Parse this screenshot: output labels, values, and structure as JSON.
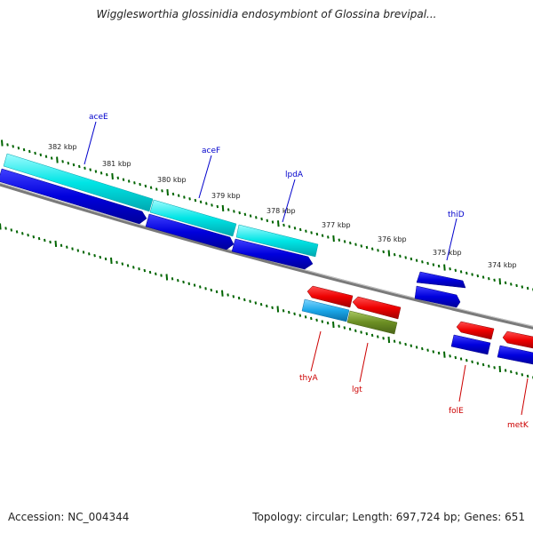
{
  "title": "Wigglesworthia glossinidia endosymbiont of Glossina brevipal...",
  "footer": {
    "accession": "Accession: NC_004344",
    "stats": "Topology: circular; Length: 697,724 bp; Genes: 651"
  },
  "scale_labels": [
    "382 kbp",
    "381 kbp",
    "380 kbp",
    "379 kbp",
    "378 kbp",
    "377 kbp",
    "376 kbp",
    "375 kbp",
    "374 kbp"
  ],
  "genes": [
    {
      "name": "aceE",
      "strand": "+",
      "color": "#0000cc"
    },
    {
      "name": "aceF",
      "strand": "+",
      "color": "#0000cc"
    },
    {
      "name": "lpdA",
      "strand": "+",
      "color": "#0000cc"
    },
    {
      "name": "thiD",
      "strand": "+",
      "color": "#0000cc"
    },
    {
      "name": "thyA",
      "strand": "-",
      "color": "#cc0000"
    },
    {
      "name": "lgt",
      "strand": "-",
      "color": "#cc0000"
    },
    {
      "name": "folE",
      "strand": "-",
      "color": "#cc0000"
    },
    {
      "name": "metK",
      "strand": "-",
      "color": "#cc0000"
    }
  ],
  "colors": {
    "backbone": "#808080",
    "forward_cds": "#0000dd",
    "reverse_cds": "#ee0000",
    "cyan_feature": "#00e5e5",
    "olive_feature": "#6b8e23",
    "tick": "#006400"
  }
}
